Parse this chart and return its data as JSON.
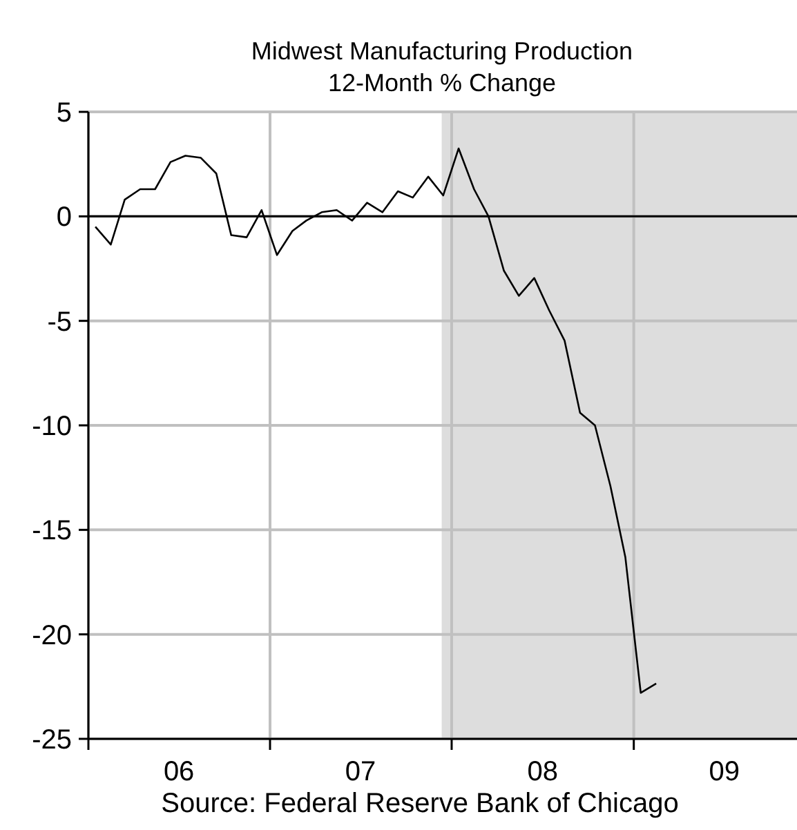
{
  "chart_data": {
    "type": "line",
    "title": "Midwest Manufacturing Production",
    "subtitle": "12-Month % Change",
    "x": [
      "2006-01-15",
      "2006-02-15",
      "2006-03-15",
      "2006-04-15",
      "2006-05-15",
      "2006-06-15",
      "2006-07-15",
      "2006-08-15",
      "2006-09-15",
      "2006-10-15",
      "2006-11-15",
      "2006-12-15",
      "2007-01-15",
      "2007-02-15",
      "2007-03-15",
      "2007-04-15",
      "2007-05-15",
      "2007-06-15",
      "2007-07-15",
      "2007-08-15",
      "2007-09-15",
      "2007-10-15",
      "2007-11-15",
      "2007-12-15",
      "2008-01-15",
      "2008-02-15",
      "2008-03-15",
      "2008-04-15",
      "2008-05-15",
      "2008-06-15",
      "2008-07-15",
      "2008-08-15",
      "2008-09-15",
      "2008-10-15",
      "2008-11-15",
      "2008-12-15",
      "2009-01-15",
      "2009-02-15"
    ],
    "series": [
      {
        "color": "#000000",
        "values": [
          -0.5,
          -1.35,
          0.8,
          1.3,
          1.3,
          2.6,
          2.9,
          2.8,
          2.05,
          -0.9,
          -1.0,
          0.3,
          -1.85,
          -0.7,
          -0.2,
          0.2,
          0.3,
          -0.2,
          0.65,
          0.2,
          1.2,
          0.9,
          1.9,
          1.0,
          3.25,
          1.3,
          0.0,
          -2.6,
          -3.8,
          -2.95,
          -4.5,
          -5.95,
          -9.4,
          -10.0,
          -12.9,
          -16.3,
          -22.8,
          -22.35
        ]
      }
    ],
    "xlim": [
      "2006-01-01",
      "2009-11-25"
    ],
    "xticks": [
      {
        "value": "2006-01-01",
        "label": null
      },
      {
        "value": "2006-07-02",
        "label": "06"
      },
      {
        "value": "2007-01-01",
        "label": null
      },
      {
        "value": "2007-07-02",
        "label": "07"
      },
      {
        "value": "2008-01-01",
        "label": null
      },
      {
        "value": "2008-07-02",
        "label": "08"
      },
      {
        "value": "2009-01-01",
        "label": null
      },
      {
        "value": "2009-07-02",
        "label": "09"
      }
    ],
    "ylim": [
      -25,
      5
    ],
    "yticks": [
      -25,
      -20,
      -15,
      -10,
      -5,
      0,
      5
    ],
    "grid": true,
    "marker": "none",
    "line_style": "solid",
    "ref_lines": [
      {
        "axis": "y",
        "value": 0,
        "color": "#000000"
      }
    ],
    "bands": [
      {
        "axis": "x",
        "from": "2007-12-12",
        "to": "2009-11-25",
        "color": "#dddddd"
      }
    ],
    "annotations": [
      "Source: Federal Reserve Bank of Chicago"
    ]
  }
}
